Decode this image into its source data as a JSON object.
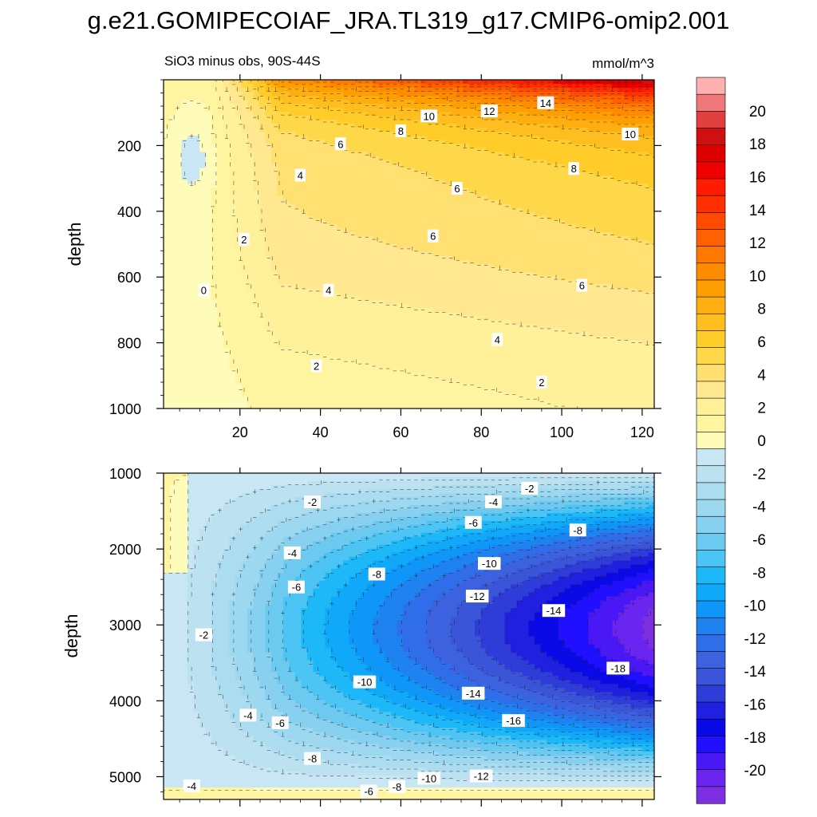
{
  "chart_data": {
    "type": "heatmap",
    "title": "g.e21.GOMIPECOIAF_JRA.TL319_g17.CMIP6-omip2.001",
    "subtitle_left": "SiO3 minus obs, 90S-44S",
    "subtitle_right": "mmol/m^3",
    "colorbar": {
      "levels": [
        -22,
        -21,
        -20,
        -19,
        -18,
        -17,
        -16,
        -15,
        -14,
        -13,
        -12,
        -11,
        -10,
        -9,
        -8,
        -7,
        -6,
        -5,
        -4,
        -3,
        -2,
        -1,
        0,
        1,
        2,
        3,
        4,
        5,
        6,
        7,
        8,
        9,
        10,
        11,
        12,
        13,
        14,
        15,
        16,
        17,
        18,
        19,
        20,
        21,
        22
      ],
      "tick_labels": [
        "-20",
        "-18",
        "-16",
        "-14",
        "-12",
        "-10",
        "-8",
        "-6",
        "-4",
        "-2",
        "0",
        "2",
        "4",
        "6",
        "8",
        "10",
        "12",
        "14",
        "16",
        "18",
        "20"
      ],
      "colors": [
        "#7b2fe0",
        "#6a25f0",
        "#4a18f5",
        "#2010ff",
        "#0a0ae6",
        "#2020e0",
        "#2e3cd8",
        "#3a55d8",
        "#3c62e0",
        "#2f6ee8",
        "#1e82f0",
        "#0e96f8",
        "#10a8f8",
        "#1cb8f8",
        "#4cc4f4",
        "#6ccaf0",
        "#88d0f0",
        "#9cd8f0",
        "#acdcf0",
        "#bce2f2",
        "#c8e6f4",
        "#fffbb8",
        "#fff5a0",
        "#fff09a",
        "#ffe890",
        "#ffe070",
        "#ffd84a",
        "#ffcc2a",
        "#ffbe20",
        "#ffae10",
        "#ff9e00",
        "#ff8c00",
        "#ff7800",
        "#ff6000",
        "#ff4a00",
        "#ff3000",
        "#ff1c00",
        "#ee0000",
        "#dd0000",
        "#d01010",
        "#e04040",
        "#f07878",
        "#ffb0b0"
      ]
    },
    "panels": [
      {
        "name": "upper",
        "xlabel": "",
        "ylabel": "depth",
        "xlim": [
          1,
          123
        ],
        "ylim": [
          0,
          1000
        ],
        "y_inverted": true,
        "xticks": [
          20,
          40,
          60,
          80,
          100,
          120
        ],
        "yticks": [
          200,
          400,
          600,
          800,
          1000
        ],
        "x_tick_labels": [
          "20",
          "40",
          "60",
          "80",
          "100",
          "120"
        ],
        "y_tick_labels": [
          "200",
          "400",
          "600",
          "800",
          "1000"
        ],
        "contour_labels": [
          {
            "x": 96,
            "y": 70,
            "v": "14"
          },
          {
            "x": 82,
            "y": 95,
            "v": "12"
          },
          {
            "x": 67,
            "y": 110,
            "v": "10"
          },
          {
            "x": 117,
            "y": 165,
            "v": "10"
          },
          {
            "x": 60,
            "y": 155,
            "v": "8"
          },
          {
            "x": 103,
            "y": 270,
            "v": "8"
          },
          {
            "x": 45,
            "y": 195,
            "v": "6"
          },
          {
            "x": 74,
            "y": 330,
            "v": "6"
          },
          {
            "x": 68,
            "y": 475,
            "v": "6"
          },
          {
            "x": 105,
            "y": 625,
            "v": "6"
          },
          {
            "x": 35,
            "y": 290,
            "v": "4"
          },
          {
            "x": 42,
            "y": 640,
            "v": "4"
          },
          {
            "x": 84,
            "y": 790,
            "v": "4"
          },
          {
            "x": 21,
            "y": 485,
            "v": "2"
          },
          {
            "x": 39,
            "y": 870,
            "v": "2"
          },
          {
            "x": 95,
            "y": 920,
            "v": "2"
          },
          {
            "x": 11,
            "y": 640,
            "v": "0"
          }
        ]
      },
      {
        "name": "lower",
        "xlabel": "",
        "ylabel": "depth",
        "xlim": [
          1,
          123
        ],
        "ylim": [
          1000,
          5300
        ],
        "y_inverted": true,
        "xticks": [
          20,
          40,
          60,
          80,
          100,
          120
        ],
        "yticks": [
          1000,
          2000,
          3000,
          4000,
          5000
        ],
        "x_tick_labels": [
          "",
          "",
          "",
          "",
          "",
          ""
        ],
        "y_tick_labels": [
          "1000",
          "2000",
          "3000",
          "4000",
          "5000"
        ],
        "contour_labels": [
          {
            "x": 92,
            "y": 1200,
            "v": "-2"
          },
          {
            "x": 38,
            "y": 1380,
            "v": "-2"
          },
          {
            "x": 11,
            "y": 3130,
            "v": "-2"
          },
          {
            "x": 83,
            "y": 1380,
            "v": "-4"
          },
          {
            "x": 33,
            "y": 2050,
            "v": "-4"
          },
          {
            "x": 22,
            "y": 4190,
            "v": "-4"
          },
          {
            "x": 8,
            "y": 5120,
            "v": "-4"
          },
          {
            "x": 78,
            "y": 1650,
            "v": "-6"
          },
          {
            "x": 34,
            "y": 2500,
            "v": "-6"
          },
          {
            "x": 30,
            "y": 4290,
            "v": "-6"
          },
          {
            "x": 52,
            "y": 5190,
            "v": "-6"
          },
          {
            "x": 104,
            "y": 1750,
            "v": "-8"
          },
          {
            "x": 54,
            "y": 2330,
            "v": "-8"
          },
          {
            "x": 38,
            "y": 4760,
            "v": "-8"
          },
          {
            "x": 59,
            "y": 5130,
            "v": "-8"
          },
          {
            "x": 82,
            "y": 2190,
            "v": "-10"
          },
          {
            "x": 51,
            "y": 3750,
            "v": "-10"
          },
          {
            "x": 67,
            "y": 5020,
            "v": "-10"
          },
          {
            "x": 79,
            "y": 2620,
            "v": "-12"
          },
          {
            "x": 80,
            "y": 4990,
            "v": "-12"
          },
          {
            "x": 98,
            "y": 2810,
            "v": "-14"
          },
          {
            "x": 78,
            "y": 3900,
            "v": "-14"
          },
          {
            "x": 88,
            "y": 4260,
            "v": "-16"
          },
          {
            "x": 114,
            "y": 3570,
            "v": "-18"
          }
        ]
      }
    ]
  }
}
